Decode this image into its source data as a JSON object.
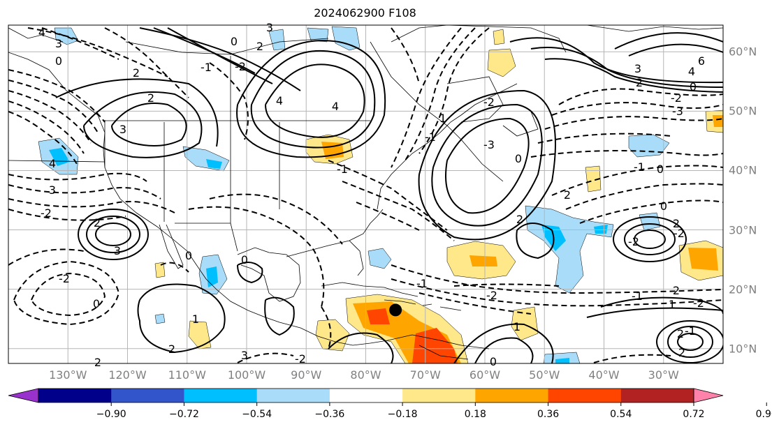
{
  "title": "2024062900 F108",
  "lon_labels": [
    "130°W",
    "120°W",
    "110°W",
    "100°W",
    "90°W",
    "80°W",
    "70°W",
    "60°W",
    "50°W",
    "40°W",
    "30°W"
  ],
  "lat_labels": [
    "60°N",
    "50°N",
    "40°N",
    "30°N",
    "20°N",
    "10°N"
  ],
  "colorbar": {
    "ticks": [
      "−0.90",
      "−0.72",
      "−0.54",
      "−0.36",
      "−0.18",
      "0.18",
      "0.36",
      "0.54",
      "0.72",
      "0.90"
    ],
    "colors": [
      "#9932cc",
      "#00008b",
      "#3355cc",
      "#00bfff",
      "#a8dcf8",
      "#ffffff",
      "#ffe88a",
      "#ffa500",
      "#ff4500",
      "#b22222",
      "#ff82ab"
    ]
  },
  "contour_labels": [
    "4",
    "3",
    "0",
    "2",
    "3",
    "2",
    "4",
    "3",
    "-1",
    "2",
    "-2",
    "2",
    "3",
    "0",
    "2",
    "3",
    "-2",
    "1",
    "4",
    "3",
    "0",
    "-2",
    "4",
    "-3",
    "-2",
    "2",
    "2",
    "1",
    "0",
    "-1",
    "0",
    "0",
    "-2",
    "-1",
    "-1",
    "1",
    "0",
    "0",
    "-1",
    "-2",
    "2",
    "-1",
    "3",
    "2",
    "0",
    "-2",
    "-3",
    "-2",
    "6",
    "4",
    "-1",
    "0",
    "-2",
    "2",
    "2",
    "1",
    "-2",
    "2",
    "2"
  ],
  "marker": {
    "lon": -75,
    "lat": 16.5
  }
}
